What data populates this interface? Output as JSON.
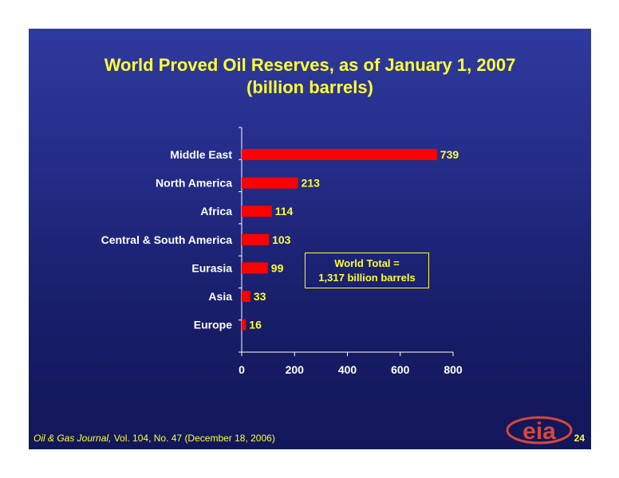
{
  "chart_data": {
    "type": "bar",
    "orientation": "horizontal",
    "title": "World Proved Oil Reserves, as of January 1, 2007",
    "subtitle": "(billion barrels)",
    "categories": [
      "Middle East",
      "North America",
      "Africa",
      "Central & South America",
      "Eurasia",
      "Asia",
      "Europe"
    ],
    "values": [
      739,
      213,
      114,
      103,
      99,
      33,
      16
    ],
    "xticks": [
      0,
      200,
      400,
      600,
      800
    ],
    "xlim": [
      0,
      800
    ],
    "grid": false,
    "legend": "none",
    "bar_color": "#ff0000",
    "label_color": "#ffff33"
  },
  "annotation": {
    "line1": "World Total =",
    "line2": "1,317 billion barrels"
  },
  "footer": {
    "source_italic": "Oil & Gas Journal,",
    "source_rest": " Vol. 104, No. 47 (December 18, 2006)",
    "page_number": "24"
  },
  "logo": {
    "text": "eia"
  },
  "colors": {
    "accent": "#ffff33",
    "bar": "#ff0000",
    "background": "#1c2370"
  }
}
